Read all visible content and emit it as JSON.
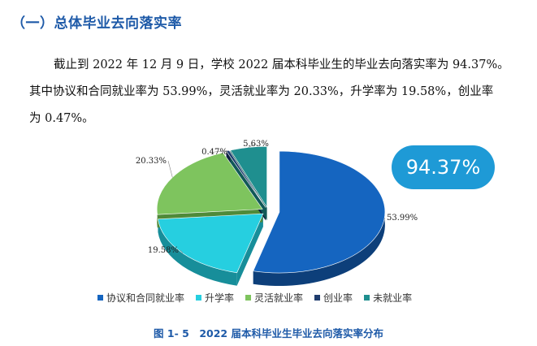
{
  "heading": "（一）总体毕业去向落实率",
  "paragraph": {
    "line1": "截止到 2022 年 12 月 9 日，学校 2022 届本科毕业生的毕业去向落实率为 94.37%。",
    "line2": "其中协议和合同就业率为 53.99%，灵活就业率为 20.33%，升学率为 19.58%，创业率",
    "line3": "为 0.47%。"
  },
  "badge": "94.37%",
  "caption": "图 1- 5　2022 届本科毕业生毕业去向落实率分布",
  "chart_data": {
    "type": "pie",
    "title": "",
    "slices": [
      {
        "name": "协议和合同就业率",
        "value": 53.99,
        "label": "53.99%",
        "color": "#1565c0",
        "side": "#0d3f7a"
      },
      {
        "name": "升学率",
        "value": 19.58,
        "label": "19.58%",
        "color": "#26cfe0",
        "side": "#178e9a"
      },
      {
        "name": "灵活就业率",
        "value": 20.33,
        "label": "20.33%",
        "color": "#7ec45e",
        "side": "#4f8a39"
      },
      {
        "name": "创业率",
        "value": 0.47,
        "label": "0.47%",
        "color": "#1f3d6e",
        "side": "#0f2140"
      },
      {
        "name": "未就业率",
        "value": 5.63,
        "label": "5.63%",
        "color": "#1f8f8f",
        "side": "#115858"
      }
    ],
    "legend_position": "bottom"
  }
}
